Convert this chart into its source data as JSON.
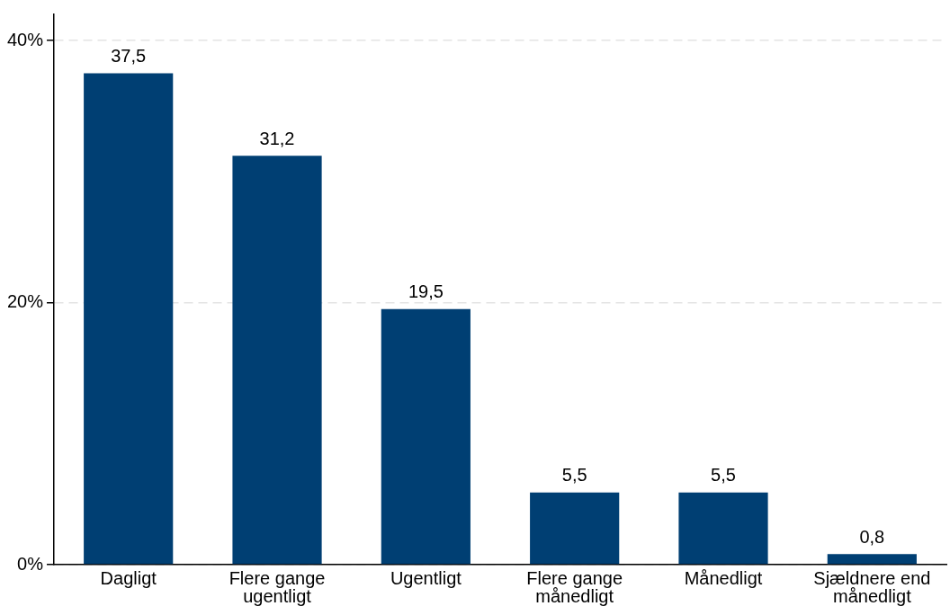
{
  "chart_data": {
    "type": "bar",
    "categories": [
      "Dagligt",
      "Flere gange ugentligt",
      "Ugentligt",
      "Flere gange månedligt",
      "Månedligt",
      "Sjældnere end månedligt"
    ],
    "values": [
      37.5,
      31.2,
      19.5,
      5.5,
      5.5,
      0.8
    ],
    "value_labels": [
      "37,5",
      "31,2",
      "19,5",
      "5,5",
      "5,5",
      "0,8"
    ],
    "color": "#003f73",
    "ylim": [
      0,
      42
    ],
    "yticks": [
      {
        "value": 0,
        "label": "0%"
      },
      {
        "value": 20,
        "label": "20%"
      },
      {
        "value": 40,
        "label": "40%"
      }
    ],
    "grid": "y",
    "legend": false
  }
}
